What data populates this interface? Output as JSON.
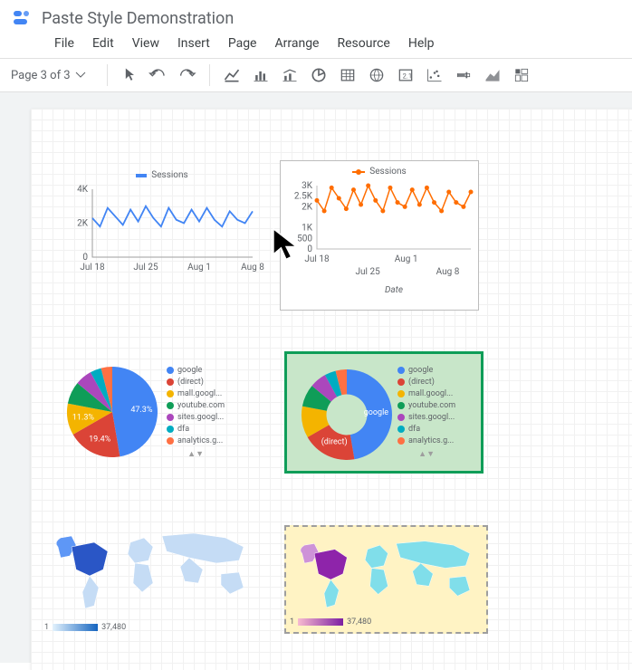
{
  "title": "Paste Style Demonstration",
  "menu": [
    "File",
    "Edit",
    "View",
    "Insert",
    "Page",
    "Arrange",
    "Resource",
    "Help"
  ],
  "page_selector": "Page 3 of 3",
  "line_chart_1": {
    "legend": "Sessions",
    "color": "#4285f4",
    "y_ticks": [
      "4K",
      "2K",
      "0"
    ],
    "y_vals": [
      4000,
      2000,
      0
    ],
    "x_labels": [
      "Jul 18",
      "Jul 25",
      "Aug 1",
      "Aug 8"
    ],
    "data": [
      2300,
      1800,
      2900,
      2400,
      1900,
      2800,
      2100,
      3000,
      2300,
      1800,
      2900,
      2200,
      2000,
      2800,
      2100,
      2900,
      2200,
      1800,
      2700,
      2200,
      2000,
      2700
    ]
  },
  "line_chart_2": {
    "legend": "Sessions",
    "color": "#ff6d00",
    "border": "#bdbdbd",
    "y_ticks": [
      "3K",
      "2.5K",
      "2K",
      "1K",
      "500",
      "0"
    ],
    "y_vals": [
      3000,
      2500,
      2000,
      1000,
      500,
      0
    ],
    "x_labels": [
      "Jul 18",
      "Jul 25",
      "Aug 1",
      "Aug 8"
    ],
    "x_axis_title": "Date",
    "data": [
      2300,
      1800,
      2900,
      2400,
      1900,
      2800,
      2100,
      3000,
      2300,
      1800,
      2900,
      2200,
      2000,
      2800,
      2100,
      2900,
      2200,
      1800,
      2700,
      2200,
      2000,
      2700
    ]
  },
  "pie_1": {
    "labels_on": {
      "blue": "47.3%",
      "red": "19.4%",
      "amber": "11.3%"
    },
    "slices": [
      {
        "name": "google",
        "color": "#4285f4",
        "pct": 47.3
      },
      {
        "name": "(direct)",
        "color": "#db4437",
        "pct": 19.4
      },
      {
        "name": "mall.googl...",
        "color": "#f4b400",
        "pct": 11.3
      },
      {
        "name": "youtube.com",
        "color": "#0f9d58",
        "pct": 8
      },
      {
        "name": "sites.googl...",
        "color": "#ab47bc",
        "pct": 6
      },
      {
        "name": "dfa",
        "color": "#00acc1",
        "pct": 4
      },
      {
        "name": "analytics.g...",
        "color": "#ff7043",
        "pct": 4
      }
    ]
  },
  "pie_2": {
    "border": "#0f9d58",
    "bg": "#c8e6c9",
    "labels_on": {
      "google": "google",
      "direct": "(direct)"
    },
    "slices": [
      {
        "name": "google",
        "color": "#4285f4",
        "pct": 47.3
      },
      {
        "name": "(direct)",
        "color": "#db4437",
        "pct": 19.4
      },
      {
        "name": "mall.googl...",
        "color": "#f4b400",
        "pct": 11.3
      },
      {
        "name": "youtube.com",
        "color": "#0f9d58",
        "pct": 8
      },
      {
        "name": "sites.googl...",
        "color": "#ab47bc",
        "pct": 6
      },
      {
        "name": "dfa",
        "color": "#00acc1",
        "pct": 4
      },
      {
        "name": "analytics.g...",
        "color": "#ff7043",
        "pct": 4
      }
    ]
  },
  "map_1": {
    "scale_min": "1",
    "scale_max": "37,480",
    "grad_from": "#e3f2fd",
    "grad_to": "#1565c0"
  },
  "map_2": {
    "scale_min": "1",
    "scale_max": "37,480",
    "bg": "#fff3c4",
    "border": "#9e9e9e",
    "grad_from": "#f8bbd0",
    "grad_to": "#7b1fa2",
    "land": "#80deea"
  }
}
